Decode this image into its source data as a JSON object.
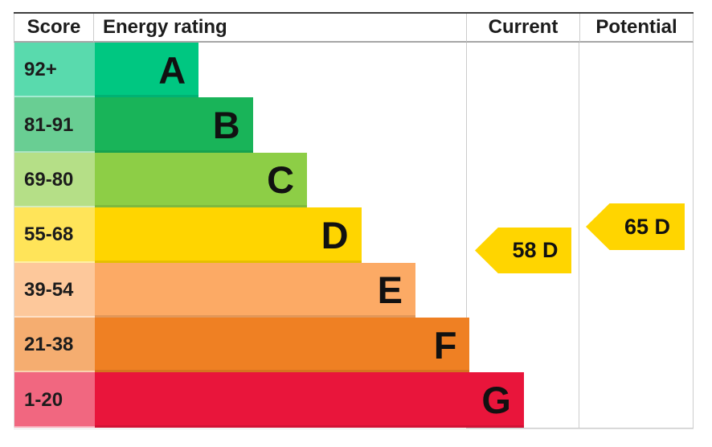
{
  "header": {
    "score": "Score",
    "rating": "Energy rating",
    "current": "Current",
    "potential": "Potential"
  },
  "bands": [
    {
      "letter": "A",
      "range": "92+",
      "color": "#00c781",
      "range_bg": "#59daad"
    },
    {
      "letter": "B",
      "range": "81-91",
      "color": "#19b459",
      "range_bg": "#69ce93"
    },
    {
      "letter": "C",
      "range": "69-80",
      "color": "#8dce46",
      "range_bg": "#b5df87"
    },
    {
      "letter": "D",
      "range": "55-68",
      "color": "#ffd500",
      "range_bg": "#ffe459"
    },
    {
      "letter": "E",
      "range": "39-54",
      "color": "#fcaa65",
      "range_bg": "#fdc89b"
    },
    {
      "letter": "F",
      "range": "21-38",
      "color": "#ef8023",
      "range_bg": "#f5ad70"
    },
    {
      "letter": "G",
      "range": "1-20",
      "color": "#e9153b",
      "range_bg": "#f16780"
    }
  ],
  "current": {
    "label": "58 D",
    "color": "#ffd500"
  },
  "potential": {
    "label": "65 D",
    "color": "#ffd500"
  },
  "chart_data": {
    "type": "bar",
    "title": "",
    "columns": [
      "Score",
      "Energy rating",
      "Current",
      "Potential"
    ],
    "categories": [
      "A",
      "B",
      "C",
      "D",
      "E",
      "F",
      "G"
    ],
    "score_ranges": [
      "92+",
      "81-91",
      "69-80",
      "55-68",
      "39-54",
      "21-38",
      "1-20"
    ],
    "band_colors": [
      "#00c781",
      "#19b459",
      "#8dce46",
      "#ffd500",
      "#fcaa65",
      "#ef8023",
      "#e9153b"
    ],
    "bar_lengths_relative": [
      0.23,
      0.35,
      0.47,
      0.59,
      0.71,
      0.83,
      0.95
    ],
    "current": {
      "score": 58,
      "rating": "D"
    },
    "potential": {
      "score": 65,
      "rating": "D"
    },
    "legend": false,
    "grid": false
  }
}
